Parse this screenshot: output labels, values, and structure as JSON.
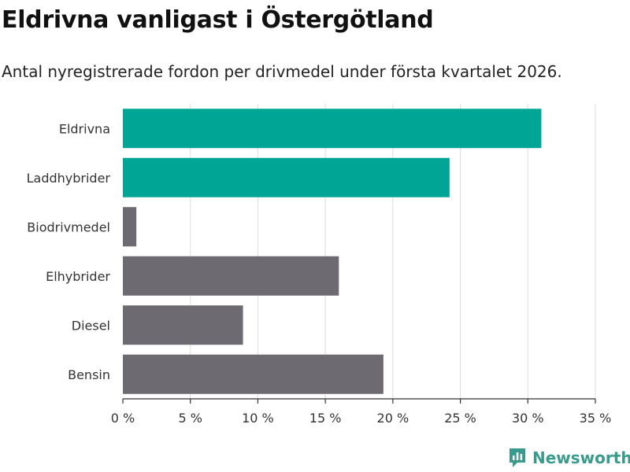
{
  "chart_data": {
    "type": "bar",
    "orientation": "horizontal",
    "title": "Eldrivna vanligast i Östergötland",
    "subtitle": "Antal nyregistrerade fordon per drivmedel under första kvartalet 2026.",
    "categories": [
      "Eldrivna",
      "Laddhybrider",
      "Biodrivmedel",
      "Elhybrider",
      "Diesel",
      "Bensin"
    ],
    "values": [
      31.0,
      24.2,
      1.0,
      16.0,
      8.9,
      19.3
    ],
    "highlight": [
      true,
      true,
      false,
      false,
      false,
      false
    ],
    "xlim": [
      0,
      35
    ],
    "xticks": [
      0,
      5,
      10,
      15,
      20,
      25,
      30,
      35
    ],
    "xtick_labels": [
      "0 %",
      "5 %",
      "10 %",
      "15 %",
      "20 %",
      "25 %",
      "30 %",
      "35 %"
    ],
    "xlabel": "",
    "ylabel": "",
    "grid": true,
    "colors": {
      "highlight": "#00a595",
      "default": "#6d6b71",
      "grid": "#dddddd",
      "axis": "#333333"
    }
  },
  "brand": {
    "name": "Newsworthy",
    "color": "#3a9b8c"
  }
}
